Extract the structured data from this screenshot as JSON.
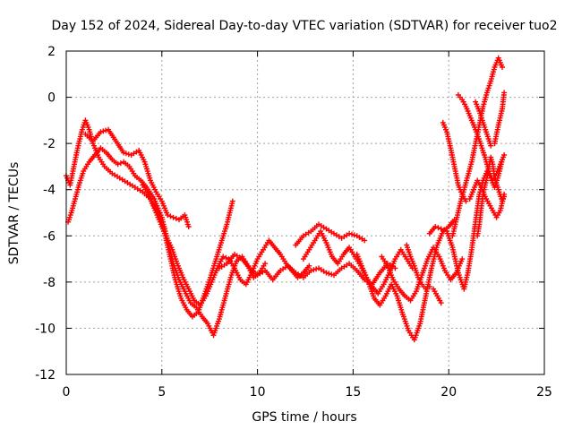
{
  "chart_data": {
    "type": "scatter",
    "title": "Day 152 of 2024, Sidereal Day-to-day VTEC variation (SDTVAR) for receiver tuo2",
    "xlabel": "GPS time / hours",
    "ylabel": "SDTVAR / TECUs",
    "xlim": [
      0,
      25
    ],
    "ylim": [
      -12,
      2
    ],
    "x_ticks": [
      0,
      5,
      10,
      15,
      20,
      25
    ],
    "y_ticks": [
      -12,
      -10,
      -8,
      -6,
      -4,
      -2,
      0,
      2
    ],
    "x_tick_labels": [
      "0",
      "5",
      "10",
      "15",
      "20",
      "25"
    ],
    "y_tick_labels": [
      "-12",
      "-10",
      "-8",
      "-6",
      "-4",
      "-2",
      "0",
      "2"
    ],
    "grid": true,
    "marker": "plus",
    "color": "#ff0000",
    "series": [
      {
        "points": [
          [
            0.0,
            -3.4
          ],
          [
            0.2,
            -3.8
          ],
          [
            0.4,
            -3.0
          ],
          [
            0.6,
            -2.2
          ],
          [
            0.8,
            -1.5
          ],
          [
            1.0,
            -1.0
          ],
          [
            1.2,
            -1.4
          ],
          [
            1.4,
            -2.0
          ],
          [
            1.7,
            -2.6
          ],
          [
            2.0,
            -3.0
          ],
          [
            2.4,
            -3.3
          ],
          [
            2.8,
            -3.5
          ],
          [
            3.2,
            -3.7
          ],
          [
            3.6,
            -3.9
          ],
          [
            4.0,
            -4.1
          ],
          [
            4.4,
            -4.4
          ],
          [
            4.8,
            -5.0
          ],
          [
            5.1,
            -5.7
          ],
          [
            5.4,
            -6.8
          ],
          [
            5.7,
            -7.9
          ],
          [
            6.0,
            -8.7
          ],
          [
            6.3,
            -9.2
          ],
          [
            6.6,
            -9.5
          ],
          [
            6.9,
            -9.3
          ],
          [
            7.2,
            -8.6
          ],
          [
            7.5,
            -7.9
          ],
          [
            7.8,
            -7.1
          ],
          [
            8.1,
            -6.3
          ],
          [
            8.4,
            -5.5
          ],
          [
            8.7,
            -4.5
          ]
        ]
      },
      {
        "points": [
          [
            0.1,
            -5.4
          ],
          [
            0.3,
            -4.9
          ],
          [
            0.5,
            -4.3
          ],
          [
            0.7,
            -3.7
          ],
          [
            0.9,
            -3.2
          ],
          [
            1.2,
            -2.8
          ],
          [
            1.5,
            -2.5
          ],
          [
            1.8,
            -2.2
          ],
          [
            2.1,
            -2.4
          ],
          [
            2.4,
            -2.7
          ],
          [
            2.7,
            -2.9
          ],
          [
            3.0,
            -2.8
          ],
          [
            3.3,
            -3.0
          ],
          [
            3.6,
            -3.4
          ],
          [
            3.9,
            -3.6
          ],
          [
            4.2,
            -3.9
          ],
          [
            4.6,
            -4.4
          ],
          [
            5.0,
            -5.2
          ],
          [
            5.3,
            -6.2
          ],
          [
            5.6,
            -7.2
          ],
          [
            5.9,
            -7.9
          ],
          [
            6.2,
            -8.4
          ],
          [
            6.5,
            -8.9
          ],
          [
            6.8,
            -9.1
          ],
          [
            7.1,
            -9.5
          ],
          [
            7.4,
            -9.8
          ],
          [
            7.7,
            -10.3
          ],
          [
            8.0,
            -9.6
          ],
          [
            8.3,
            -8.7
          ],
          [
            8.6,
            -7.8
          ],
          [
            8.9,
            -7.1
          ],
          [
            9.2,
            -6.9
          ],
          [
            9.5,
            -7.3
          ],
          [
            9.8,
            -7.8
          ],
          [
            10.1,
            -7.6
          ],
          [
            10.4,
            -7.2
          ]
        ]
      },
      {
        "points": [
          [
            1.0,
            -1.6
          ],
          [
            1.4,
            -1.9
          ],
          [
            1.8,
            -1.5
          ],
          [
            2.2,
            -1.4
          ],
          [
            2.6,
            -1.9
          ],
          [
            3.0,
            -2.4
          ],
          [
            3.4,
            -2.5
          ],
          [
            3.8,
            -2.3
          ],
          [
            4.1,
            -2.8
          ],
          [
            4.4,
            -3.6
          ],
          [
            4.7,
            -4.1
          ],
          [
            5.0,
            -4.5
          ],
          [
            5.3,
            -5.1
          ],
          [
            5.6,
            -5.2
          ],
          [
            5.9,
            -5.3
          ],
          [
            6.2,
            -5.1
          ],
          [
            6.4,
            -5.6
          ]
        ]
      },
      {
        "points": [
          [
            4.0,
            -3.8
          ],
          [
            4.3,
            -4.2
          ],
          [
            4.6,
            -4.8
          ],
          [
            4.9,
            -5.4
          ],
          [
            5.2,
            -6.0
          ],
          [
            5.5,
            -6.5
          ],
          [
            5.8,
            -7.2
          ],
          [
            6.1,
            -7.8
          ],
          [
            6.4,
            -8.3
          ],
          [
            6.7,
            -8.8
          ],
          [
            7.0,
            -9.0
          ],
          [
            7.3,
            -8.6
          ],
          [
            7.6,
            -8.0
          ],
          [
            7.9,
            -7.4
          ],
          [
            8.2,
            -6.9
          ],
          [
            8.5,
            -7.0
          ],
          [
            8.8,
            -7.4
          ],
          [
            9.1,
            -7.9
          ],
          [
            9.4,
            -8.1
          ],
          [
            9.7,
            -7.6
          ],
          [
            10.0,
            -7.0
          ],
          [
            10.3,
            -6.6
          ],
          [
            10.6,
            -6.2
          ],
          [
            10.9,
            -6.5
          ],
          [
            11.2,
            -6.8
          ],
          [
            11.5,
            -7.2
          ],
          [
            11.8,
            -7.5
          ],
          [
            12.1,
            -7.8
          ],
          [
            12.4,
            -7.6
          ],
          [
            12.7,
            -7.3
          ]
        ]
      },
      {
        "points": [
          [
            8.0,
            -7.4
          ],
          [
            8.4,
            -7.2
          ],
          [
            8.8,
            -6.8
          ],
          [
            9.2,
            -7.0
          ],
          [
            9.6,
            -7.4
          ],
          [
            10.0,
            -7.7
          ],
          [
            10.4,
            -7.5
          ],
          [
            10.8,
            -7.9
          ],
          [
            11.2,
            -7.5
          ],
          [
            11.6,
            -7.3
          ],
          [
            12.0,
            -7.6
          ],
          [
            12.4,
            -7.8
          ],
          [
            12.8,
            -7.5
          ],
          [
            13.2,
            -7.4
          ],
          [
            13.6,
            -7.6
          ],
          [
            14.0,
            -7.7
          ],
          [
            14.4,
            -7.4
          ],
          [
            14.8,
            -7.2
          ],
          [
            15.2,
            -7.5
          ],
          [
            15.6,
            -7.9
          ],
          [
            16.0,
            -8.1
          ],
          [
            16.4,
            -7.6
          ],
          [
            16.8,
            -7.2
          ],
          [
            17.2,
            -7.4
          ]
        ]
      },
      {
        "points": [
          [
            12.4,
            -7.0
          ],
          [
            12.7,
            -6.6
          ],
          [
            13.0,
            -6.2
          ],
          [
            13.3,
            -5.8
          ],
          [
            13.6,
            -6.3
          ],
          [
            13.9,
            -6.9
          ],
          [
            14.2,
            -7.2
          ],
          [
            14.5,
            -6.8
          ],
          [
            14.8,
            -6.5
          ],
          [
            15.1,
            -6.9
          ],
          [
            15.4,
            -7.3
          ],
          [
            15.7,
            -7.8
          ],
          [
            16.0,
            -8.2
          ],
          [
            16.3,
            -8.5
          ],
          [
            16.6,
            -8.1
          ],
          [
            16.9,
            -7.6
          ],
          [
            17.2,
            -7.0
          ],
          [
            17.5,
            -6.6
          ],
          [
            17.8,
            -7.0
          ],
          [
            18.1,
            -7.4
          ]
        ]
      },
      {
        "points": [
          [
            12.0,
            -6.4
          ],
          [
            12.4,
            -6.0
          ],
          [
            12.8,
            -5.8
          ],
          [
            13.2,
            -5.5
          ],
          [
            13.6,
            -5.7
          ],
          [
            14.0,
            -5.9
          ],
          [
            14.4,
            -6.1
          ],
          [
            14.8,
            -5.9
          ],
          [
            15.2,
            -6.0
          ],
          [
            15.6,
            -6.2
          ]
        ]
      },
      {
        "points": [
          [
            15.2,
            -6.8
          ],
          [
            15.5,
            -7.4
          ],
          [
            15.8,
            -8.0
          ],
          [
            16.1,
            -8.7
          ],
          [
            16.4,
            -9.0
          ],
          [
            16.7,
            -8.6
          ],
          [
            17.0,
            -8.1
          ],
          [
            17.3,
            -8.6
          ],
          [
            17.6,
            -9.4
          ],
          [
            17.9,
            -10.1
          ],
          [
            18.2,
            -10.5
          ],
          [
            18.5,
            -9.8
          ],
          [
            18.8,
            -8.6
          ],
          [
            19.1,
            -7.4
          ],
          [
            19.4,
            -6.4
          ],
          [
            19.7,
            -5.8
          ],
          [
            20.0,
            -5.6
          ],
          [
            20.3,
            -5.3
          ]
        ]
      },
      {
        "points": [
          [
            16.5,
            -6.9
          ],
          [
            16.8,
            -7.3
          ],
          [
            17.1,
            -7.9
          ],
          [
            17.4,
            -8.3
          ],
          [
            17.7,
            -8.6
          ],
          [
            18.0,
            -8.8
          ],
          [
            18.3,
            -8.4
          ],
          [
            18.6,
            -7.7
          ],
          [
            18.9,
            -7.0
          ],
          [
            19.2,
            -6.5
          ],
          [
            19.5,
            -6.9
          ],
          [
            19.8,
            -7.5
          ],
          [
            20.1,
            -7.9
          ],
          [
            20.4,
            -7.6
          ],
          [
            20.7,
            -7.0
          ]
        ]
      },
      {
        "points": [
          [
            17.8,
            -6.4
          ],
          [
            18.0,
            -6.9
          ],
          [
            18.2,
            -7.3
          ],
          [
            18.4,
            -7.8
          ],
          [
            18.6,
            -8.1
          ],
          [
            18.8,
            -8.3
          ],
          [
            19.0,
            -8.2
          ],
          [
            19.2,
            -8.3
          ],
          [
            19.4,
            -8.6
          ],
          [
            19.6,
            -8.9
          ]
        ]
      },
      {
        "points": [
          [
            19.0,
            -5.9
          ],
          [
            19.3,
            -5.6
          ],
          [
            19.6,
            -5.7
          ],
          [
            19.9,
            -5.8
          ],
          [
            20.2,
            -6.5
          ],
          [
            20.5,
            -7.6
          ],
          [
            20.8,
            -8.3
          ],
          [
            21.0,
            -7.6
          ],
          [
            21.2,
            -6.6
          ],
          [
            21.4,
            -5.4
          ],
          [
            21.6,
            -4.2
          ],
          [
            21.8,
            -3.6
          ],
          [
            22.0,
            -3.2
          ],
          [
            22.2,
            -3.5
          ],
          [
            22.4,
            -3.9
          ],
          [
            22.6,
            -3.4
          ],
          [
            22.8,
            -2.7
          ]
        ]
      },
      {
        "points": [
          [
            19.7,
            -1.1
          ],
          [
            19.9,
            -1.5
          ],
          [
            20.1,
            -2.2
          ],
          [
            20.3,
            -3.0
          ],
          [
            20.5,
            -3.8
          ],
          [
            20.7,
            -4.2
          ],
          [
            20.9,
            -4.5
          ],
          [
            21.1,
            -4.4
          ],
          [
            21.3,
            -4.0
          ],
          [
            21.5,
            -3.6
          ],
          [
            21.7,
            -3.9
          ],
          [
            21.9,
            -4.3
          ],
          [
            22.1,
            -4.6
          ],
          [
            22.3,
            -4.9
          ],
          [
            22.5,
            -5.2
          ],
          [
            22.7,
            -4.9
          ],
          [
            22.9,
            -4.2
          ]
        ]
      },
      {
        "points": [
          [
            20.2,
            -6.0
          ],
          [
            20.4,
            -5.3
          ],
          [
            20.6,
            -4.6
          ],
          [
            20.8,
            -4.0
          ],
          [
            21.0,
            -3.4
          ],
          [
            21.2,
            -2.8
          ],
          [
            21.4,
            -2.0
          ],
          [
            21.6,
            -1.2
          ],
          [
            21.8,
            -0.4
          ],
          [
            22.0,
            0.2
          ],
          [
            22.2,
            0.7
          ],
          [
            22.4,
            1.3
          ],
          [
            22.6,
            1.7
          ],
          [
            22.8,
            1.3
          ]
        ]
      },
      {
        "points": [
          [
            20.5,
            0.1
          ],
          [
            20.7,
            -0.1
          ],
          [
            20.9,
            -0.4
          ],
          [
            21.1,
            -0.8
          ],
          [
            21.3,
            -1.2
          ],
          [
            21.5,
            -1.6
          ],
          [
            21.7,
            -2.1
          ],
          [
            21.9,
            -2.6
          ],
          [
            22.1,
            -3.2
          ],
          [
            22.3,
            -3.6
          ],
          [
            22.5,
            -3.3
          ],
          [
            22.7,
            -2.9
          ],
          [
            22.9,
            -2.5
          ]
        ]
      },
      {
        "points": [
          [
            21.4,
            -0.2
          ],
          [
            21.6,
            -0.6
          ],
          [
            21.8,
            -1.1
          ],
          [
            22.0,
            -1.6
          ],
          [
            22.2,
            -2.1
          ],
          [
            22.4,
            -2.0
          ],
          [
            22.6,
            -1.2
          ],
          [
            22.8,
            -0.5
          ],
          [
            22.9,
            0.2
          ]
        ]
      },
      {
        "points": [
          [
            21.5,
            -6.0
          ],
          [
            21.6,
            -5.5
          ],
          [
            21.7,
            -4.8
          ],
          [
            21.8,
            -4.2
          ],
          [
            21.9,
            -3.8
          ],
          [
            22.0,
            -3.5
          ],
          [
            22.1,
            -3.0
          ],
          [
            22.2,
            -2.6
          ],
          [
            22.3,
            -2.9
          ],
          [
            22.4,
            -3.5
          ],
          [
            22.6,
            -4.0
          ],
          [
            22.8,
            -4.5
          ],
          [
            22.9,
            -4.3
          ]
        ]
      }
    ]
  }
}
